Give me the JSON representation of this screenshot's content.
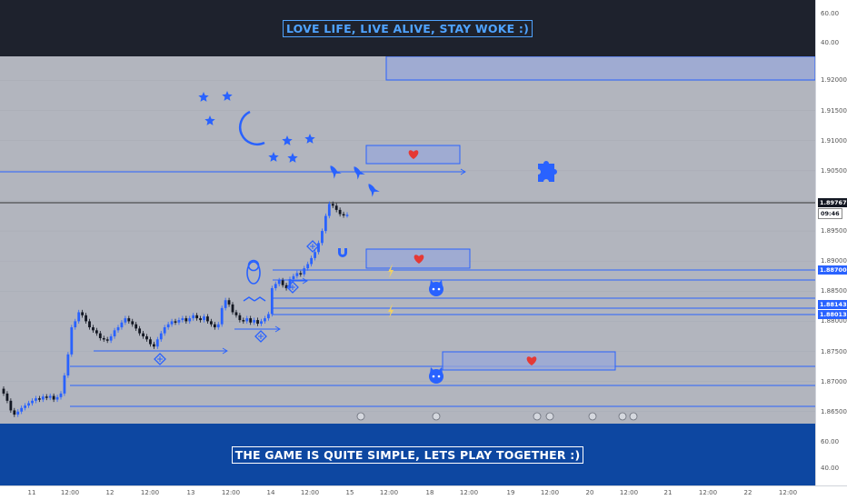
{
  "banners": {
    "top": "LOVE LIFE, LIVE ALIVE, STAY WOKE :)",
    "bottom": "THE GAME IS QUITE SIMPLE, LETS PLAY TOGETHER :)"
  },
  "colors": {
    "background": "#b2b5be",
    "accent": "#2962ff",
    "up_candle": "#2962ff",
    "down_candle": "#131722",
    "heart": "#e53935",
    "lightning": "#f0d060",
    "box_fill": "#98a8d8"
  },
  "price_labels": {
    "current_price": "1.89767",
    "countdown": "09:46",
    "level_1": "1.88700",
    "level_2": "1.88143",
    "level_3": "1.88013"
  },
  "top_pane_ticks": [
    "60.00",
    "40.00"
  ],
  "bottom_pane_ticks": [
    "60.00",
    "40.00"
  ],
  "icons": [
    "star-icon",
    "moon-icon",
    "rocket-icon",
    "puzzle-icon",
    "heart-icon",
    "magnet-icon",
    "lightning-icon",
    "linux-penguin-icon",
    "github-cat-icon",
    "crosshair-icon",
    "event-marker-icon"
  ],
  "chart_data": {
    "type": "candlestick",
    "title": "",
    "xlabel": "",
    "ylabel": "",
    "ylim": [
      1.863,
      1.924
    ],
    "y_ticks": [
      "1.92000",
      "1.91500",
      "1.91000",
      "1.90500",
      "1.90000",
      "1.89500",
      "1.89000",
      "1.88500",
      "1.88000",
      "1.87500",
      "1.87000",
      "1.86500"
    ],
    "x_ticks": [
      "11",
      "12:00",
      "12",
      "12:00",
      "13",
      "12:00",
      "14",
      "12:00",
      "15",
      "12:00",
      "18",
      "12:00",
      "19",
      "12:00",
      "20",
      "12:00",
      "21",
      "12:00",
      "22",
      "12:00"
    ],
    "closes": [
      1.868,
      1.8668,
      1.8652,
      1.8645,
      1.865,
      1.8656,
      1.866,
      1.8664,
      1.8668,
      1.8672,
      1.867,
      1.8675,
      1.8673,
      1.8676,
      1.867,
      1.8674,
      1.868,
      1.871,
      1.8745,
      1.879,
      1.88,
      1.8815,
      1.881,
      1.88,
      1.879,
      1.8785,
      1.878,
      1.8772,
      1.877,
      1.8768,
      1.8775,
      1.8785,
      1.879,
      1.8798,
      1.8805,
      1.88,
      1.8795,
      1.8788,
      1.878,
      1.8775,
      1.877,
      1.8762,
      1.8758,
      1.877,
      1.878,
      1.879,
      1.8795,
      1.88,
      1.8798,
      1.8802,
      1.8805,
      1.88,
      1.8805,
      1.881,
      1.8805,
      1.8802,
      1.8808,
      1.88,
      1.8795,
      1.879,
      1.8795,
      1.8822,
      1.8835,
      1.8828,
      1.8815,
      1.881,
      1.8802,
      1.88,
      1.8805,
      1.8798,
      1.8802,
      1.8796,
      1.88,
      1.8805,
      1.8812,
      1.8855,
      1.8862,
      1.8868,
      1.886,
      1.8855,
      1.887,
      1.8875,
      1.888,
      1.8878,
      1.8888,
      1.8895,
      1.8905,
      1.8915,
      1.893,
      1.895,
      1.8975,
      1.8995,
      1.8992,
      1.8985,
      1.8978,
      1.8976,
      1.8977
    ]
  }
}
